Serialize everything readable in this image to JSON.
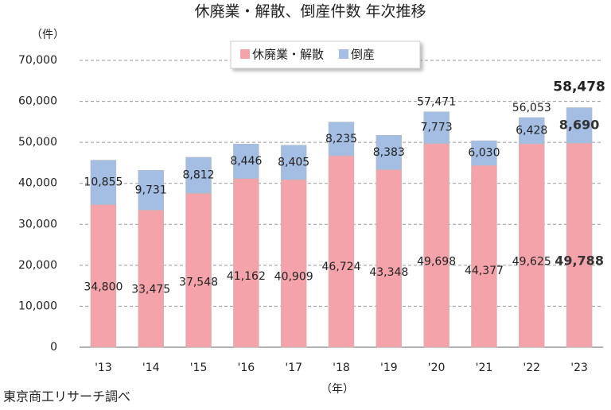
{
  "chart_data": {
    "type": "stacked-bar",
    "title": "休廃業・解散、倒産件数 年次推移",
    "y_axis_label": "（件）",
    "x_axis_label": "（年）",
    "source": "東京商工リサーチ調べ",
    "categories": [
      "'13",
      "'14",
      "'15",
      "'16",
      "'17",
      "'18",
      "'19",
      "'20",
      "'21",
      "'22",
      "'23"
    ],
    "series": [
      {
        "name": "休廃業・解散",
        "color": "#f4a3aa",
        "values": [
          34800,
          33475,
          37548,
          41162,
          40909,
          46724,
          43348,
          49698,
          44377,
          49625,
          49788
        ],
        "value_labels": [
          "34,800",
          "33,475",
          "37,548",
          "41,162",
          "40,909",
          "46,724",
          "43,348",
          "49,698",
          "44,377",
          "49,625",
          "49,788"
        ]
      },
      {
        "name": "倒産",
        "color": "#a3bde3",
        "values": [
          10855,
          9731,
          8812,
          8446,
          8405,
          8235,
          8383,
          7773,
          6030,
          6428,
          8690
        ],
        "value_labels": [
          "10,855",
          "9,731",
          "8,812",
          "8,446",
          "8,405",
          "8,235",
          "8,383",
          "7,773",
          "6,030",
          "6,428",
          "8,690"
        ]
      }
    ],
    "totals": [
      {
        "category": "'20",
        "value": 57471,
        "label": "57,471"
      },
      {
        "category": "'22",
        "value": 56053,
        "label": "56,053"
      },
      {
        "category": "'23",
        "value": 58478,
        "label": "58,478"
      }
    ],
    "ylim": [
      0,
      70000
    ],
    "yticks": [
      0,
      {
        "value": 10000,
        "label": "10,000"
      },
      {
        "value": 20000,
        "label": "20,000"
      },
      {
        "value": 30000,
        "label": "30,000"
      },
      {
        "value": 40000,
        "label": "40,000"
      },
      {
        "value": 50000,
        "label": "50,000"
      },
      {
        "value": 60000,
        "label": "60,000"
      },
      {
        "value": 70000,
        "label": "70,000"
      }
    ],
    "grid": true,
    "legend": "top"
  }
}
